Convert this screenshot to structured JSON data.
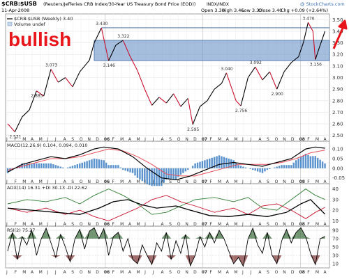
{
  "header": {
    "symbol": "$CRB:$USB",
    "description": "(Reuters/Jefferies CRB Index/30-Year US Treasury Bond Price (EOD))",
    "exchange": "INDX/INDX",
    "copyright": "@ StockCharts.com",
    "date": "11-Apr-2008",
    "open": "Open 3.30",
    "high": "High 3.46",
    "low": "Low 3.30",
    "close": "Close 3.40",
    "chg": "Chg +0.09 (+2.64%)",
    "legend_main": "$CRB:$USB (Weekly) 3.40",
    "legend_volume": "Volume undef"
  },
  "annotation": {
    "text": "bullish",
    "color": "#e8151b"
  },
  "colors": {
    "up": "#000000",
    "down": "#c8102e",
    "band": "#5b88c2",
    "macd_line": "#000000",
    "macd_signal": "#e8505b",
    "histogram": "#3c7fc4",
    "plus_di": "#2e7d32",
    "minus_di": "#c8102e",
    "adx": "#000000",
    "rsi_fill": "#4f7a4f",
    "rsi_fill_low": "#8b4a4a"
  },
  "chart_data": [
    {
      "type": "line",
      "title": "$CRB:$USB (Weekly) 3.40",
      "x_labels": [
        "J",
        "F",
        "M",
        "A",
        "M",
        "J",
        "J",
        "A",
        "S",
        "O",
        "N",
        "D",
        "06",
        "F",
        "M",
        "A",
        "M",
        "J",
        "J",
        "A",
        "S",
        "O",
        "N",
        "D",
        "07",
        "F",
        "M",
        "A",
        "M",
        "J",
        "J",
        "A",
        "S",
        "O",
        "N",
        "D",
        "08",
        "F",
        "M",
        "A"
      ],
      "ylim": [
        2.45,
        3.55
      ],
      "yticks": [
        2.5,
        2.6,
        2.7,
        2.8,
        2.9,
        3.0,
        3.1,
        3.2,
        3.3,
        3.4,
        3.5
      ],
      "series": [
        {
          "points": [
            [
              0,
              2.6
            ],
            [
              3,
              2.531
            ],
            [
              6,
              2.66
            ],
            [
              9,
              2.72
            ],
            [
              12,
              2.885
            ],
            [
              15,
              2.84
            ],
            [
              18,
              3.073
            ],
            [
              21,
              2.96
            ],
            [
              24,
              3.0
            ],
            [
              27,
              2.92
            ],
            [
              30,
              3.05
            ],
            [
              34,
              3.15
            ],
            [
              36,
              3.3
            ],
            [
              39,
              3.43
            ],
            [
              42,
              3.146
            ],
            [
              45,
              3.28
            ],
            [
              48,
              3.322
            ],
            [
              51,
              3.18
            ],
            [
              54,
              3.06
            ],
            [
              57,
              2.9
            ],
            [
              60,
              2.76
            ],
            [
              63,
              2.83
            ],
            [
              66,
              2.78
            ],
            [
              69,
              2.86
            ],
            [
              72,
              2.75
            ],
            [
              75,
              2.82
            ],
            [
              77,
              2.595
            ],
            [
              80,
              2.75
            ],
            [
              83,
              2.8
            ],
            [
              86,
              2.9
            ],
            [
              89,
              2.95
            ],
            [
              91,
              3.04
            ],
            [
              93,
              2.92
            ],
            [
              95,
              2.8
            ],
            [
              97,
              2.756
            ],
            [
              100,
              3.0
            ],
            [
              103,
              3.092
            ],
            [
              106,
              2.98
            ],
            [
              109,
              3.05
            ],
            [
              112,
              2.9
            ],
            [
              115,
              3.05
            ],
            [
              118,
              3.13
            ],
            [
              121,
              3.18
            ],
            [
              123,
              3.3
            ],
            [
              125,
              3.476
            ],
            [
              127,
              3.4
            ],
            [
              128,
              3.156
            ],
            [
              130,
              3.28
            ],
            [
              132,
              3.4
            ]
          ]
        }
      ],
      "data_labels": [
        {
          "x": 3,
          "y": 2.531,
          "text": "2.531"
        },
        {
          "x": 12,
          "y": 2.885,
          "text": "2.885"
        },
        {
          "x": 18,
          "y": 3.073,
          "text": "3.073"
        },
        {
          "x": 39,
          "y": 3.43,
          "text": "3.430"
        },
        {
          "x": 42,
          "y": 3.146,
          "text": "3.146"
        },
        {
          "x": 48,
          "y": 3.322,
          "text": "3.322"
        },
        {
          "x": 77,
          "y": 2.595,
          "text": "2.595"
        },
        {
          "x": 91,
          "y": 3.04,
          "text": "3.040"
        },
        {
          "x": 97,
          "y": 2.756,
          "text": "2.756"
        },
        {
          "x": 103,
          "y": 3.092,
          "text": "3.092"
        },
        {
          "x": 112,
          "y": 2.9,
          "text": "2.900"
        },
        {
          "x": 125,
          "y": 3.476,
          "text": "3.476"
        },
        {
          "x": 128,
          "y": 3.156,
          "text": "3.156"
        }
      ],
      "band": [
        3.146,
        3.322
      ],
      "resistance": 3.43
    },
    {
      "type": "line",
      "title": "MACD(12,26,9) 0.104, 0.094, 0.010",
      "ylim": [
        -0.08,
        0.14
      ],
      "yticks": [
        -0.05,
        0.0,
        0.05,
        0.1
      ],
      "series": [
        {
          "name": "MACD",
          "points": [
            [
              0,
              -0.02
            ],
            [
              6,
              0.02
            ],
            [
              12,
              0.04
            ],
            [
              18,
              0.06
            ],
            [
              24,
              0.05
            ],
            [
              30,
              0.07
            ],
            [
              36,
              0.1
            ],
            [
              40,
              0.11
            ],
            [
              46,
              0.1
            ],
            [
              52,
              0.06
            ],
            [
              58,
              0.0
            ],
            [
              64,
              -0.05
            ],
            [
              70,
              -0.06
            ],
            [
              76,
              -0.04
            ],
            [
              82,
              -0.01
            ],
            [
              88,
              0.02
            ],
            [
              94,
              0.03
            ],
            [
              100,
              0.02
            ],
            [
              106,
              0.01
            ],
            [
              112,
              0.03
            ],
            [
              118,
              0.05
            ],
            [
              124,
              0.1
            ],
            [
              128,
              0.11
            ],
            [
              132,
              0.104
            ]
          ]
        },
        {
          "name": "Signal",
          "points": [
            [
              0,
              -0.01
            ],
            [
              6,
              0.01
            ],
            [
              12,
              0.03
            ],
            [
              18,
              0.05
            ],
            [
              24,
              0.05
            ],
            [
              30,
              0.06
            ],
            [
              36,
              0.08
            ],
            [
              42,
              0.1
            ],
            [
              48,
              0.09
            ],
            [
              54,
              0.06
            ],
            [
              60,
              0.02
            ],
            [
              66,
              -0.03
            ],
            [
              72,
              -0.04
            ],
            [
              78,
              -0.04
            ],
            [
              84,
              -0.02
            ],
            [
              90,
              0.0
            ],
            [
              96,
              0.02
            ],
            [
              102,
              0.02
            ],
            [
              108,
              0.02
            ],
            [
              114,
              0.03
            ],
            [
              120,
              0.05
            ],
            [
              126,
              0.08
            ],
            [
              132,
              0.094
            ]
          ]
        }
      ]
    },
    {
      "type": "line",
      "title": "ADX(14) 16.31 +DI 30.13 -DI 22.62",
      "ylim": [
        5,
        45
      ],
      "yticks": [
        10,
        20,
        30,
        40
      ],
      "series": [
        {
          "name": "ADX",
          "points": [
            [
              0,
              22
            ],
            [
              10,
              20
            ],
            [
              20,
              18
            ],
            [
              30,
              16
            ],
            [
              38,
              22
            ],
            [
              44,
              28
            ],
            [
              50,
              30
            ],
            [
              56,
              25
            ],
            [
              62,
              22
            ],
            [
              70,
              24
            ],
            [
              76,
              20
            ],
            [
              84,
              15
            ],
            [
              92,
              14
            ],
            [
              100,
              16
            ],
            [
              108,
              14
            ],
            [
              116,
              18
            ],
            [
              122,
              26
            ],
            [
              126,
              30
            ],
            [
              132,
              16.31
            ]
          ]
        },
        {
          "name": "+DI",
          "points": [
            [
              0,
              26
            ],
            [
              8,
              30
            ],
            [
              16,
              28
            ],
            [
              24,
              32
            ],
            [
              30,
              26
            ],
            [
              36,
              34
            ],
            [
              42,
              40
            ],
            [
              48,
              34
            ],
            [
              54,
              26
            ],
            [
              60,
              16
            ],
            [
              66,
              18
            ],
            [
              72,
              24
            ],
            [
              78,
              30
            ],
            [
              86,
              32
            ],
            [
              94,
              28
            ],
            [
              100,
              32
            ],
            [
              106,
              22
            ],
            [
              112,
              20
            ],
            [
              118,
              30
            ],
            [
              124,
              40
            ],
            [
              128,
              34
            ],
            [
              132,
              30.13
            ]
          ]
        },
        {
          "name": "-DI",
          "points": [
            [
              0,
              22
            ],
            [
              8,
              18
            ],
            [
              16,
              22
            ],
            [
              24,
              16
            ],
            [
              30,
              20
            ],
            [
              36,
              14
            ],
            [
              42,
              10
            ],
            [
              48,
              16
            ],
            [
              54,
              22
            ],
            [
              60,
              30
            ],
            [
              66,
              34
            ],
            [
              72,
              28
            ],
            [
              78,
              24
            ],
            [
              86,
              18
            ],
            [
              94,
              22
            ],
            [
              100,
              16
            ],
            [
              106,
              24
            ],
            [
              112,
              26
            ],
            [
              118,
              20
            ],
            [
              124,
              12
            ],
            [
              128,
              18
            ],
            [
              132,
              22.62
            ]
          ]
        }
      ]
    },
    {
      "type": "line",
      "title": "RSI(2) 75.27",
      "ylim": [
        0,
        100
      ],
      "yticks": [
        10,
        30,
        50,
        70,
        90
      ],
      "series": [
        {
          "name": "RSI",
          "points": [
            [
              0,
              40
            ],
            [
              2,
              85
            ],
            [
              4,
              20
            ],
            [
              6,
              75
            ],
            [
              8,
              55
            ],
            [
              10,
              90
            ],
            [
              12,
              30
            ],
            [
              14,
              70
            ],
            [
              16,
              95
            ],
            [
              18,
              60
            ],
            [
              20,
              25
            ],
            [
              22,
              80
            ],
            [
              24,
              50
            ],
            [
              26,
              15
            ],
            [
              28,
              70
            ],
            [
              30,
              92
            ],
            [
              32,
              45
            ],
            [
              34,
              88
            ],
            [
              36,
              96
            ],
            [
              38,
              70
            ],
            [
              40,
              94
            ],
            [
              42,
              30
            ],
            [
              44,
              75
            ],
            [
              46,
              85
            ],
            [
              48,
              40
            ],
            [
              50,
              70
            ],
            [
              52,
              20
            ],
            [
              54,
              10
            ],
            [
              56,
              55
            ],
            [
              58,
              30
            ],
            [
              60,
              8
            ],
            [
              62,
              60
            ],
            [
              64,
              40
            ],
            [
              66,
              85
            ],
            [
              68,
              20
            ],
            [
              70,
              65
            ],
            [
              72,
              35
            ],
            [
              74,
              80
            ],
            [
              76,
              5
            ],
            [
              78,
              30
            ],
            [
              80,
              75
            ],
            [
              82,
              50
            ],
            [
              84,
              85
            ],
            [
              86,
              60
            ],
            [
              88,
              90
            ],
            [
              90,
              70
            ],
            [
              92,
              40
            ],
            [
              94,
              10
            ],
            [
              96,
              25
            ],
            [
              98,
              4
            ],
            [
              100,
              70
            ],
            [
              102,
              95
            ],
            [
              104,
              55
            ],
            [
              106,
              35
            ],
            [
              108,
              85
            ],
            [
              110,
              30
            ],
            [
              112,
              10
            ],
            [
              114,
              65
            ],
            [
              116,
              92
            ],
            [
              118,
              60
            ],
            [
              120,
              85
            ],
            [
              122,
              96
            ],
            [
              124,
              75
            ],
            [
              126,
              35
            ],
            [
              128,
              8
            ],
            [
              130,
              70
            ],
            [
              132,
              75.27
            ]
          ]
        }
      ]
    }
  ]
}
